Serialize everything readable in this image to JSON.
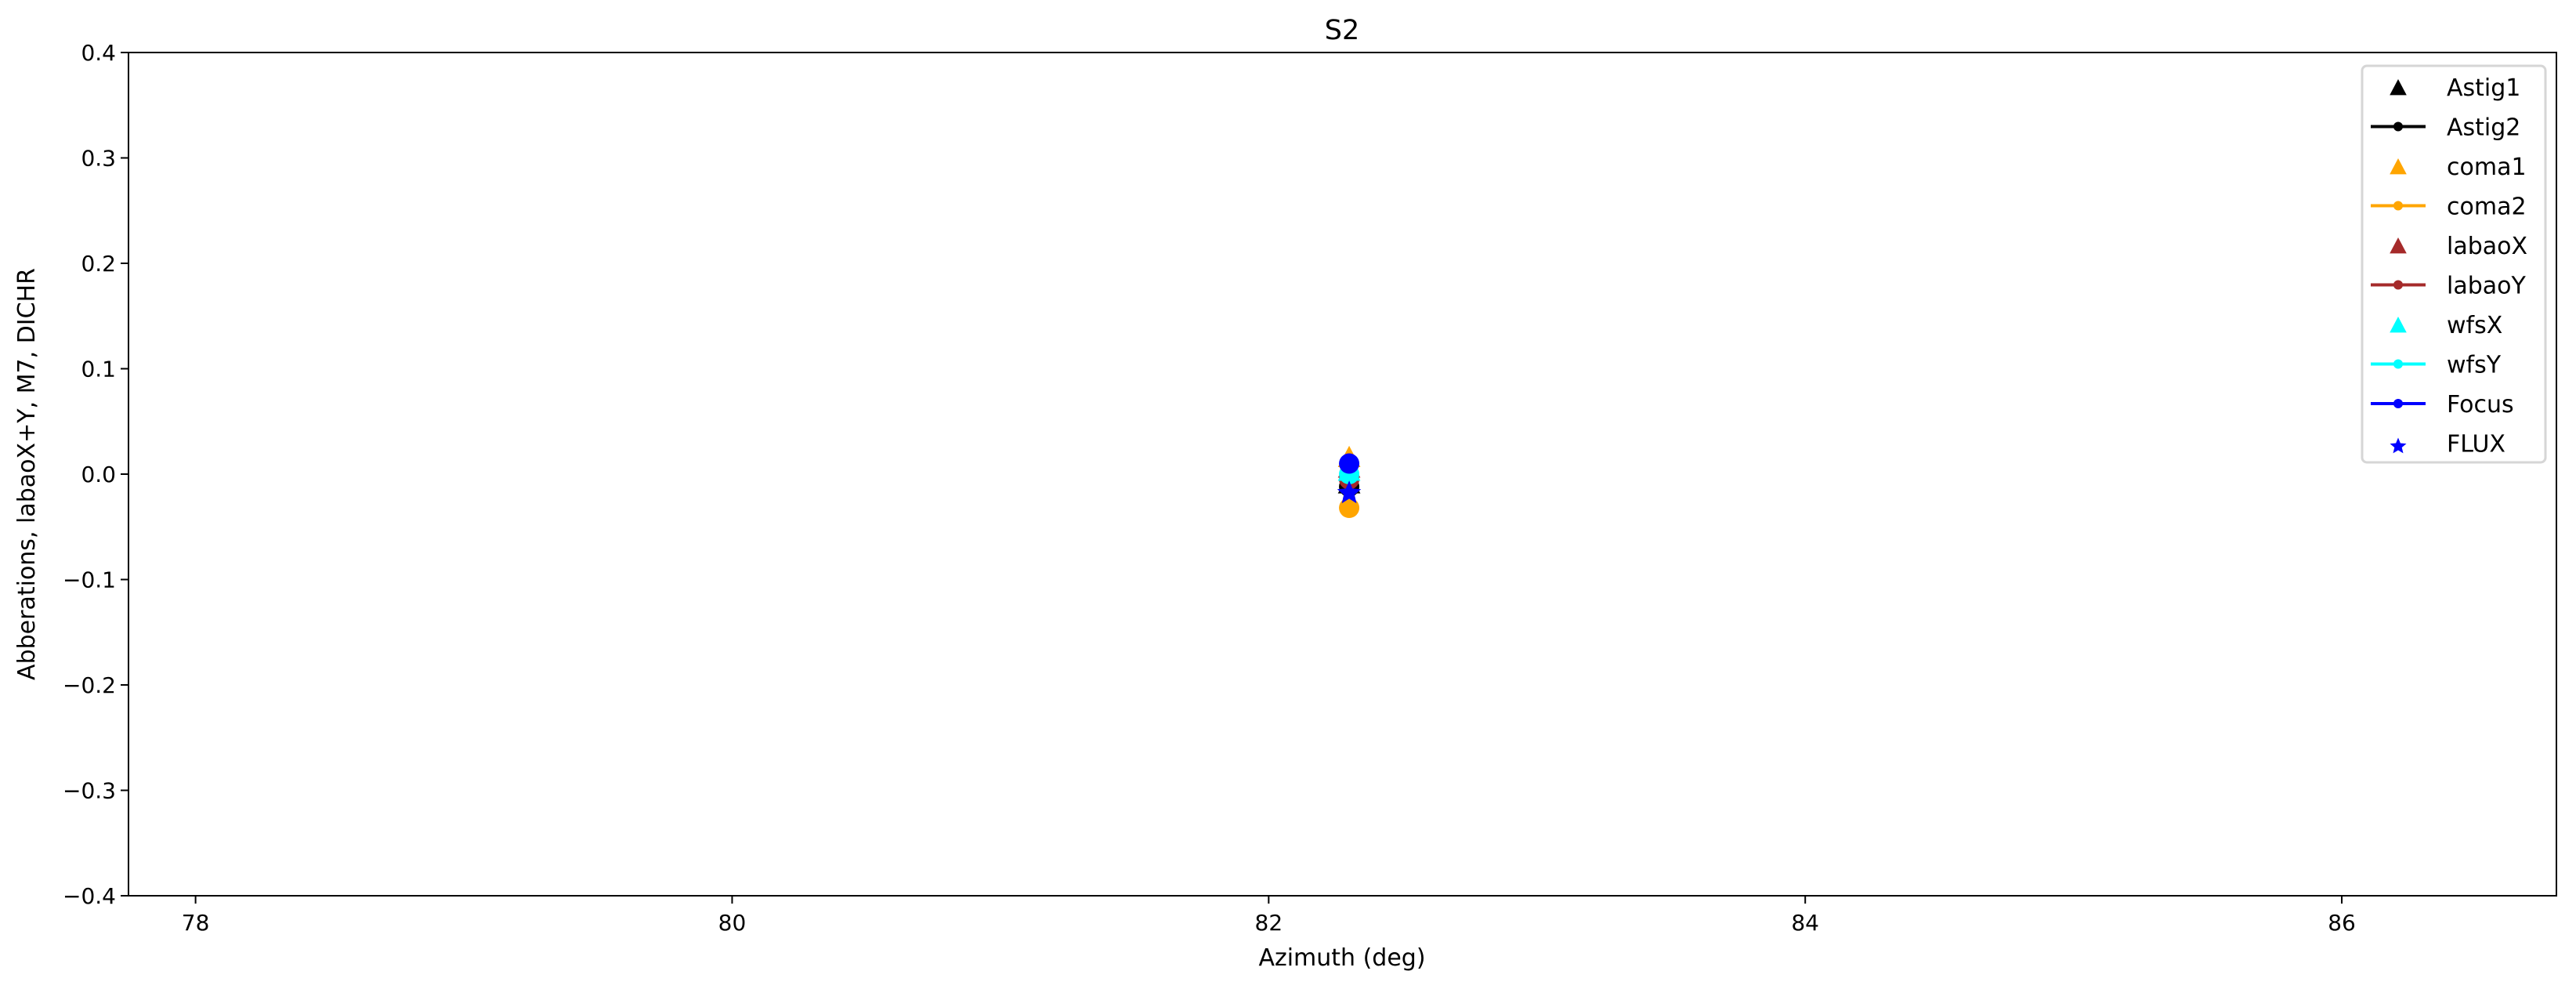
{
  "chart_data": {
    "type": "scatter",
    "title": "S2",
    "xlabel": "Azimuth (deg)",
    "ylabel": "Abberations, labaoX+Y, M7, DICHR",
    "xlim": [
      77.75,
      86.8
    ],
    "ylim": [
      -0.4,
      0.4
    ],
    "xticks": [
      78,
      80,
      82,
      84,
      86
    ],
    "yticks": [
      -0.4,
      -0.3,
      -0.2,
      -0.1,
      0.0,
      0.1,
      0.2,
      0.3,
      0.4
    ],
    "ytick_labels": [
      "−0.4",
      "−0.3",
      "−0.2",
      "−0.1",
      "0.0",
      "0.1",
      "0.2",
      "0.3",
      "0.4"
    ],
    "xtick_labels": [
      "78",
      "80",
      "82",
      "84",
      "86"
    ],
    "grid": false,
    "legend_position": "top-right",
    "series": [
      {
        "name": "Astig1",
        "marker": "triangle",
        "line": false,
        "color": "#000000",
        "x": [
          82.3
        ],
        "y": [
          -0.01
        ]
      },
      {
        "name": "Astig2",
        "marker": "dot",
        "line": true,
        "color": "#000000",
        "x": [
          82.3
        ],
        "y": [
          -0.012
        ]
      },
      {
        "name": "coma1",
        "marker": "triangle",
        "line": false,
        "color": "#FFA500",
        "x": [
          82.3
        ],
        "y": [
          0.015
        ]
      },
      {
        "name": "coma2",
        "marker": "dot",
        "line": true,
        "color": "#FFA500",
        "x": [
          82.3
        ],
        "y": [
          -0.032
        ]
      },
      {
        "name": "labaoX",
        "marker": "triangle",
        "line": false,
        "color": "#A52A2A",
        "x": [
          82.3
        ],
        "y": [
          0.005
        ]
      },
      {
        "name": "labaoY",
        "marker": "dot",
        "line": true,
        "color": "#A52A2A",
        "x": [
          82.3
        ],
        "y": [
          -0.005
        ]
      },
      {
        "name": "wfsX",
        "marker": "triangle",
        "line": false,
        "color": "#00FFFF",
        "x": [
          82.3
        ],
        "y": [
          0.002
        ]
      },
      {
        "name": "wfsY",
        "marker": "dot",
        "line": true,
        "color": "#00FFFF",
        "x": [
          82.3
        ],
        "y": [
          0.0
        ]
      },
      {
        "name": "Focus",
        "marker": "dot",
        "line": true,
        "color": "#0000FF",
        "x": [
          82.3
        ],
        "y": [
          0.01
        ]
      },
      {
        "name": "FLUX",
        "marker": "star",
        "line": false,
        "color": "#0000FF",
        "x": [
          82.3
        ],
        "y": [
          -0.018
        ]
      }
    ]
  }
}
